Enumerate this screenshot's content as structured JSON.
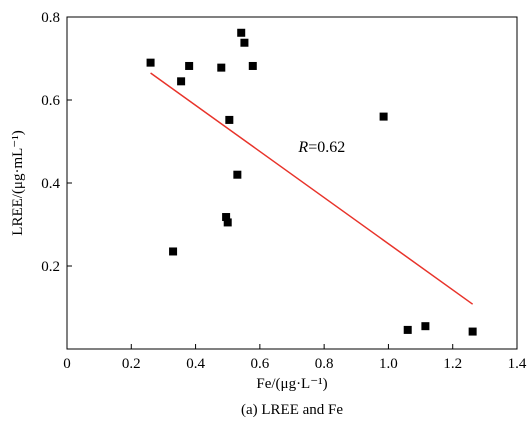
{
  "chart_data": {
    "type": "scatter",
    "caption": "(a) LREE and Fe",
    "xlabel": "Fe/(μg·L⁻¹)",
    "ylabel": "LREE/(μg·mL⁻¹)",
    "xlim": [
      0,
      1.4
    ],
    "ylim": [
      0,
      0.8
    ],
    "x_ticks": [
      0,
      0.2,
      0.4,
      0.6,
      0.8,
      1.0,
      1.2,
      1.4
    ],
    "x_tick_labels": [
      "0",
      "0.2",
      "0.4",
      "0.6",
      "0.8",
      "1.0",
      "1.2",
      "1.4"
    ],
    "y_ticks": [
      0.2,
      0.4,
      0.6,
      0.8
    ],
    "y_tick_labels": [
      "0.2",
      "0.4",
      "0.6",
      "0.8"
    ],
    "grid": false,
    "points": [
      {
        "x": 0.26,
        "y": 0.69
      },
      {
        "x": 0.33,
        "y": 0.235
      },
      {
        "x": 0.355,
        "y": 0.645
      },
      {
        "x": 0.38,
        "y": 0.682
      },
      {
        "x": 0.48,
        "y": 0.678
      },
      {
        "x": 0.495,
        "y": 0.318
      },
      {
        "x": 0.5,
        "y": 0.305
      },
      {
        "x": 0.505,
        "y": 0.552
      },
      {
        "x": 0.53,
        "y": 0.42
      },
      {
        "x": 0.542,
        "y": 0.762
      },
      {
        "x": 0.552,
        "y": 0.738
      },
      {
        "x": 0.578,
        "y": 0.682
      },
      {
        "x": 0.985,
        "y": 0.56
      },
      {
        "x": 1.06,
        "y": 0.046
      },
      {
        "x": 1.115,
        "y": 0.055
      },
      {
        "x": 1.262,
        "y": 0.042
      }
    ],
    "trendline": {
      "x": [
        0.26,
        1.262
      ],
      "y": [
        0.665,
        0.108
      ],
      "color": "#e8332a"
    },
    "annotation": {
      "r_symbol": "R",
      "r_text": "=0.62",
      "x": 0.72,
      "y": 0.475
    },
    "marker_color": "#000000"
  }
}
